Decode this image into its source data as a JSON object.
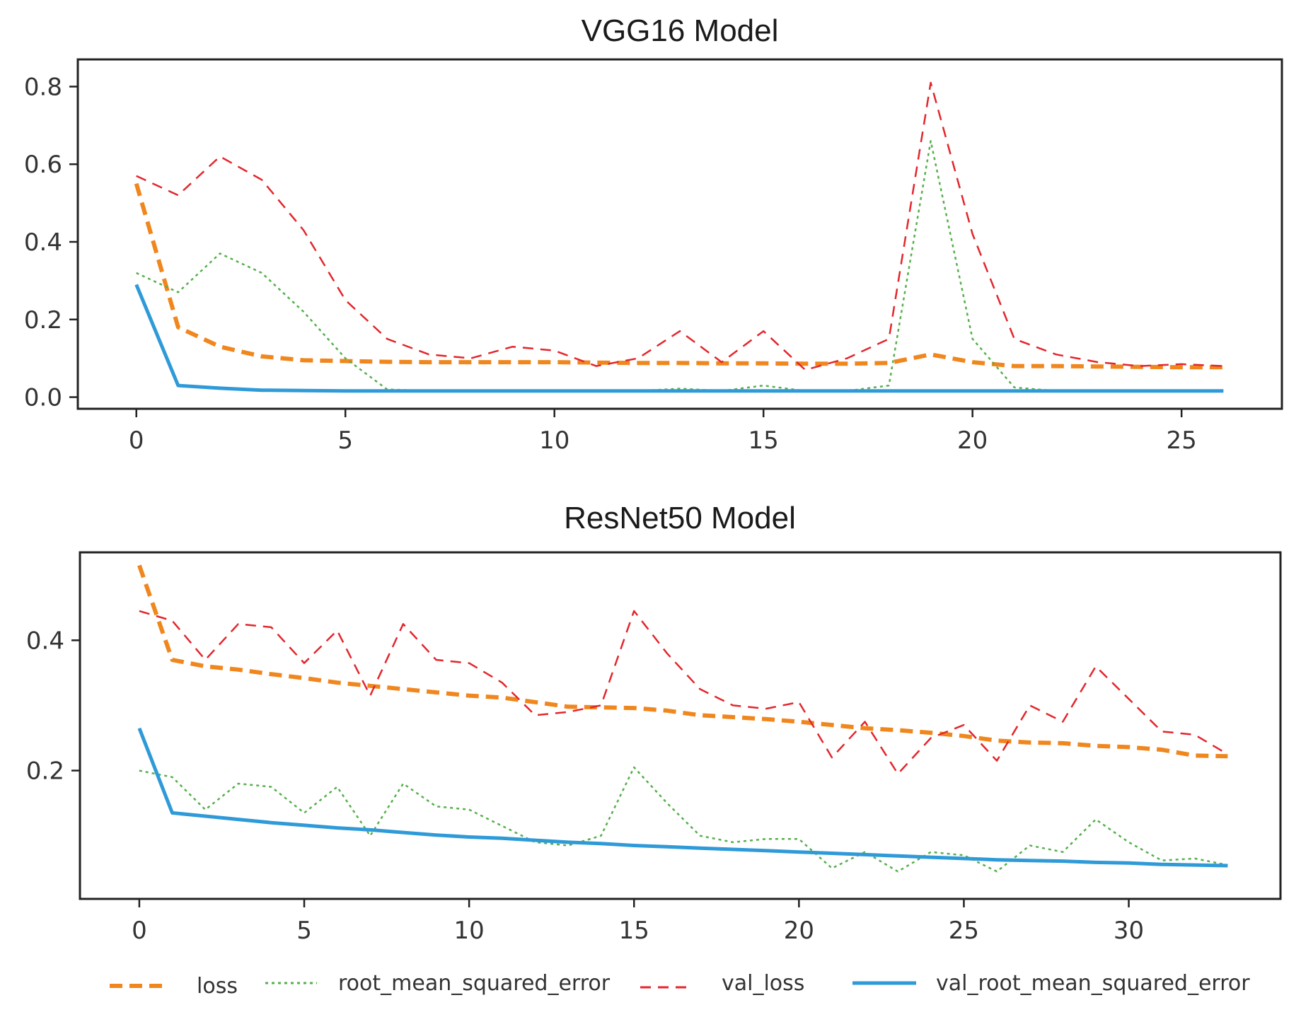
{
  "colors": {
    "loss": "#f0871e",
    "root_mean_squared_error": "#55b04b",
    "val_loss": "#e3262c",
    "val_root_mean_squared_error": "#2f9ad8",
    "axes": "#222222"
  },
  "legend": [
    {
      "key": "loss",
      "label": "loss"
    },
    {
      "key": "root_mean_squared_error",
      "label": "root_mean_squared_error"
    },
    {
      "key": "val_loss",
      "label": "val_loss"
    },
    {
      "key": "val_root_mean_squared_error",
      "label": "val_root_mean_squared_error"
    }
  ],
  "chart_data": [
    {
      "type": "line",
      "title": "VGG16 Model",
      "xlabel": "",
      "ylabel": "",
      "xlim": [
        -1.4,
        27.4
      ],
      "ylim": [
        -0.03,
        0.87
      ],
      "xticks": [
        0,
        5,
        10,
        15,
        20,
        25
      ],
      "xtick_labels": [
        "0",
        "5",
        "10",
        "15",
        "20",
        "25"
      ],
      "yticks": [
        0.0,
        0.2,
        0.4,
        0.6,
        0.8
      ],
      "ytick_labels": [
        "0.0",
        "0.2",
        "0.4",
        "0.6",
        "0.8"
      ],
      "x": [
        0,
        1,
        2,
        3,
        4,
        5,
        6,
        7,
        8,
        9,
        10,
        11,
        12,
        13,
        14,
        15,
        16,
        17,
        18,
        19,
        20,
        21,
        22,
        23,
        24,
        25,
        26
      ],
      "series": [
        {
          "name": "loss",
          "key": "loss",
          "values": [
            0.55,
            0.18,
            0.13,
            0.105,
            0.095,
            0.093,
            0.091,
            0.09,
            0.09,
            0.09,
            0.09,
            0.089,
            0.088,
            0.088,
            0.087,
            0.087,
            0.086,
            0.086,
            0.088,
            0.11,
            0.09,
            0.08,
            0.08,
            0.079,
            0.078,
            0.077,
            0.077
          ]
        },
        {
          "name": "root_mean_squared_error",
          "key": "root_mean_squared_error",
          "values": [
            0.32,
            0.27,
            0.37,
            0.32,
            0.22,
            0.1,
            0.02,
            0.016,
            0.016,
            0.016,
            0.016,
            0.016,
            0.016,
            0.022,
            0.016,
            0.03,
            0.016,
            0.016,
            0.03,
            0.66,
            0.15,
            0.025,
            0.016,
            0.016,
            0.016,
            0.016,
            0.016
          ]
        },
        {
          "name": "val_loss",
          "key": "val_loss",
          "values": [
            0.57,
            0.52,
            0.62,
            0.56,
            0.43,
            0.25,
            0.15,
            0.11,
            0.1,
            0.13,
            0.12,
            0.08,
            0.1,
            0.17,
            0.09,
            0.17,
            0.07,
            0.1,
            0.15,
            0.81,
            0.42,
            0.15,
            0.11,
            0.09,
            0.08,
            0.085,
            0.08
          ]
        },
        {
          "name": "val_root_mean_squared_error",
          "key": "val_root_mean_squared_error",
          "values": [
            0.29,
            0.03,
            0.023,
            0.018,
            0.017,
            0.016,
            0.016,
            0.016,
            0.016,
            0.016,
            0.016,
            0.016,
            0.016,
            0.016,
            0.016,
            0.016,
            0.016,
            0.016,
            0.016,
            0.016,
            0.016,
            0.016,
            0.016,
            0.016,
            0.016,
            0.016,
            0.016
          ]
        }
      ]
    },
    {
      "type": "line",
      "title": "ResNet50 Model",
      "xlabel": "",
      "ylabel": "",
      "xlim": [
        -1.8,
        34.6
      ],
      "ylim": [
        0.003,
        0.535
      ],
      "xticks": [
        0,
        5,
        10,
        15,
        20,
        25,
        30
      ],
      "xtick_labels": [
        "0",
        "5",
        "10",
        "15",
        "20",
        "25",
        "30"
      ],
      "yticks": [
        0.2,
        0.4
      ],
      "ytick_labels": [
        "0.2",
        "0.4"
      ],
      "x": [
        0,
        1,
        2,
        3,
        4,
        5,
        6,
        7,
        8,
        9,
        10,
        11,
        12,
        13,
        14,
        15,
        16,
        17,
        18,
        19,
        20,
        21,
        22,
        23,
        24,
        25,
        26,
        27,
        28,
        29,
        30,
        31,
        32,
        33
      ],
      "series": [
        {
          "name": "loss",
          "key": "loss",
          "values": [
            0.515,
            0.37,
            0.36,
            0.355,
            0.348,
            0.342,
            0.335,
            0.33,
            0.325,
            0.32,
            0.315,
            0.312,
            0.305,
            0.298,
            0.297,
            0.296,
            0.292,
            0.285,
            0.282,
            0.279,
            0.275,
            0.27,
            0.265,
            0.262,
            0.258,
            0.253,
            0.246,
            0.243,
            0.242,
            0.238,
            0.236,
            0.232,
            0.223,
            0.222
          ]
        },
        {
          "name": "root_mean_squared_error",
          "key": "root_mean_squared_error",
          "values": [
            0.2,
            0.19,
            0.14,
            0.18,
            0.175,
            0.135,
            0.175,
            0.1,
            0.18,
            0.145,
            0.14,
            0.115,
            0.09,
            0.085,
            0.1,
            0.205,
            0.15,
            0.1,
            0.09,
            0.095,
            0.095,
            0.05,
            0.075,
            0.045,
            0.075,
            0.07,
            0.045,
            0.085,
            0.075,
            0.125,
            0.09,
            0.062,
            0.065,
            0.055
          ]
        },
        {
          "name": "val_loss",
          "key": "val_loss",
          "values": [
            0.445,
            0.43,
            0.37,
            0.425,
            0.42,
            0.365,
            0.415,
            0.315,
            0.425,
            0.37,
            0.365,
            0.335,
            0.285,
            0.29,
            0.3,
            0.445,
            0.38,
            0.325,
            0.3,
            0.295,
            0.305,
            0.22,
            0.275,
            0.195,
            0.25,
            0.27,
            0.215,
            0.3,
            0.275,
            0.36,
            0.31,
            0.26,
            0.255,
            0.225
          ]
        },
        {
          "name": "val_root_mean_squared_error",
          "key": "val_root_mean_squared_error",
          "values": [
            0.265,
            0.135,
            0.13,
            0.125,
            0.12,
            0.116,
            0.112,
            0.109,
            0.105,
            0.101,
            0.098,
            0.096,
            0.093,
            0.09,
            0.088,
            0.085,
            0.083,
            0.081,
            0.079,
            0.077,
            0.075,
            0.073,
            0.071,
            0.069,
            0.067,
            0.065,
            0.063,
            0.062,
            0.061,
            0.059,
            0.058,
            0.056,
            0.055,
            0.054
          ]
        }
      ]
    }
  ]
}
